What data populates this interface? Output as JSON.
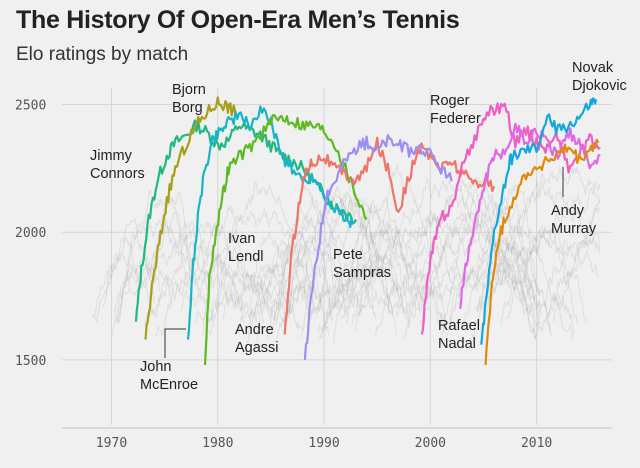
{
  "header": {
    "title": "The History Of Open-Era Men’s Tennis",
    "subtitle": "Elo ratings by match"
  },
  "chart_data": {
    "type": "line",
    "title": "The History Of Open-Era Men’s Tennis",
    "subtitle": "Elo ratings by match",
    "xlabel": "",
    "ylabel": "",
    "xlim": [
      1966,
      2017
    ],
    "ylim": [
      1300,
      2600
    ],
    "x_ticks": [
      1970,
      1980,
      1990,
      2000,
      2010
    ],
    "y_ticks": [
      1500,
      2000,
      2500
    ],
    "x_tick_labels": [
      "1970",
      "1980",
      "1990",
      "2000",
      "2010"
    ],
    "y_tick_labels": [
      "1500",
      "2000",
      "2500"
    ],
    "grid": true,
    "background_players": "many other players shown as faint gray lines between about 1500 and 2300",
    "series": [
      {
        "name": "Jimmy Connors",
        "color": "#1fb982",
        "points": [
          [
            1972.3,
            1650
          ],
          [
            1972.8,
            1850
          ],
          [
            1973.5,
            2050
          ],
          [
            1974.3,
            2200
          ],
          [
            1975.2,
            2300
          ],
          [
            1976,
            2350
          ],
          [
            1977,
            2380
          ],
          [
            1978,
            2420
          ],
          [
            1979,
            2390
          ],
          [
            1980,
            2340
          ],
          [
            1981,
            2360
          ],
          [
            1982,
            2420
          ],
          [
            1983,
            2400
          ],
          [
            1984,
            2380
          ],
          [
            1985,
            2340
          ],
          [
            1986,
            2300
          ],
          [
            1987,
            2280
          ],
          [
            1988,
            2250
          ],
          [
            1989,
            2200
          ],
          [
            1990,
            2150
          ],
          [
            1991,
            2100
          ],
          [
            1992,
            2080
          ],
          [
            1993,
            2050
          ]
        ]
      },
      {
        "name": "Bjorn Borg",
        "color": "#a7a017",
        "points": [
          [
            1973.2,
            1580
          ],
          [
            1973.8,
            1780
          ],
          [
            1974.5,
            1960
          ],
          [
            1975.2,
            2120
          ],
          [
            1976,
            2250
          ],
          [
            1977,
            2340
          ],
          [
            1978,
            2420
          ],
          [
            1979,
            2470
          ],
          [
            1980,
            2510
          ],
          [
            1980.6,
            2500
          ],
          [
            1981.3,
            2480
          ],
          [
            1981.9,
            2460
          ]
        ]
      },
      {
        "name": "John McEnroe",
        "color": "#17b5c7",
        "points": [
          [
            1977.2,
            1580
          ],
          [
            1977.7,
            1880
          ],
          [
            1978.2,
            2080
          ],
          [
            1978.8,
            2250
          ],
          [
            1979.5,
            2360
          ],
          [
            1980.2,
            2400
          ],
          [
            1981,
            2440
          ],
          [
            1982,
            2450
          ],
          [
            1983,
            2420
          ],
          [
            1984,
            2470
          ],
          [
            1985,
            2440
          ],
          [
            1986,
            2300
          ],
          [
            1987,
            2250
          ],
          [
            1988,
            2200
          ],
          [
            1989,
            2220
          ],
          [
            1990,
            2150
          ],
          [
            1991,
            2100
          ],
          [
            1992,
            2050
          ],
          [
            1992.7,
            2030
          ]
        ]
      },
      {
        "name": "Ivan Lendl",
        "color": "#5dba22",
        "points": [
          [
            1978.8,
            1480
          ],
          [
            1979.2,
            1820
          ],
          [
            1979.8,
            2000
          ],
          [
            1980.5,
            2150
          ],
          [
            1981,
            2250
          ],
          [
            1982,
            2300
          ],
          [
            1983,
            2330
          ],
          [
            1984,
            2380
          ],
          [
            1985,
            2430
          ],
          [
            1986,
            2450
          ],
          [
            1987,
            2440
          ],
          [
            1988,
            2420
          ],
          [
            1989,
            2420
          ],
          [
            1990,
            2400
          ],
          [
            1991,
            2350
          ],
          [
            1992,
            2250
          ],
          [
            1993,
            2150
          ],
          [
            1994,
            2050
          ]
        ]
      },
      {
        "name": "Andre Agassi",
        "color": "#f07568",
        "points": [
          [
            1986.3,
            1600
          ],
          [
            1986.9,
            1900
          ],
          [
            1987.6,
            2100
          ],
          [
            1988.3,
            2250
          ],
          [
            1989,
            2280
          ],
          [
            1990,
            2300
          ],
          [
            1991,
            2250
          ],
          [
            1992,
            2230
          ],
          [
            1993,
            2200
          ],
          [
            1994,
            2250
          ],
          [
            1995,
            2350
          ],
          [
            1996,
            2250
          ],
          [
            1997,
            2080
          ],
          [
            1998,
            2220
          ],
          [
            1999,
            2330
          ],
          [
            2000,
            2300
          ],
          [
            2001,
            2250
          ],
          [
            2002,
            2280
          ],
          [
            2003,
            2230
          ],
          [
            2004,
            2200
          ],
          [
            2005,
            2200
          ],
          [
            2006,
            2180
          ]
        ]
      },
      {
        "name": "Pete Sampras",
        "color": "#9d8ef2",
        "points": [
          [
            1988.2,
            1500
          ],
          [
            1988.8,
            1750
          ],
          [
            1989.5,
            1950
          ],
          [
            1990.2,
            2150
          ],
          [
            1991,
            2200
          ],
          [
            1992,
            2280
          ],
          [
            1993,
            2330
          ],
          [
            1994,
            2350
          ],
          [
            1995,
            2320
          ],
          [
            1996,
            2360
          ],
          [
            1997,
            2340
          ],
          [
            1998,
            2320
          ],
          [
            1999,
            2330
          ],
          [
            2000,
            2300
          ],
          [
            2001,
            2250
          ],
          [
            2002,
            2200
          ]
        ]
      },
      {
        "name": "Roger Federer",
        "color": "#f05ec3",
        "points": [
          [
            1999.2,
            1600
          ],
          [
            1999.7,
            1800
          ],
          [
            2000.3,
            1950
          ],
          [
            2001,
            2050
          ],
          [
            2002,
            2100
          ],
          [
            2003,
            2250
          ],
          [
            2004,
            2350
          ],
          [
            2005,
            2450
          ],
          [
            2006,
            2480
          ],
          [
            2007,
            2500
          ],
          [
            2008,
            2350
          ],
          [
            2009,
            2400
          ],
          [
            2010,
            2350
          ],
          [
            2011,
            2330
          ],
          [
            2012,
            2380
          ],
          [
            2013,
            2250
          ],
          [
            2014,
            2300
          ],
          [
            2015,
            2360
          ],
          [
            2016,
            2330
          ]
        ]
      },
      {
        "name": "Rafael Nadal",
        "color": "#e068e8",
        "points": [
          [
            2002.8,
            1700
          ],
          [
            2003.3,
            1870
          ],
          [
            2004,
            2000
          ],
          [
            2004.8,
            2150
          ],
          [
            2005.5,
            2250
          ],
          [
            2006,
            2300
          ],
          [
            2007,
            2320
          ],
          [
            2008,
            2410
          ],
          [
            2009,
            2360
          ],
          [
            2010,
            2400
          ],
          [
            2011,
            2350
          ],
          [
            2012,
            2300
          ],
          [
            2013,
            2390
          ],
          [
            2014,
            2360
          ],
          [
            2015,
            2270
          ],
          [
            2016,
            2300
          ]
        ]
      },
      {
        "name": "Novak Djokovic",
        "color": "#13a7de",
        "points": [
          [
            2004.8,
            1560
          ],
          [
            2005.3,
            1750
          ],
          [
            2006,
            2000
          ],
          [
            2006.8,
            2150
          ],
          [
            2007.5,
            2280
          ],
          [
            2008,
            2300
          ],
          [
            2009,
            2320
          ],
          [
            2010,
            2330
          ],
          [
            2011,
            2450
          ],
          [
            2012,
            2400
          ],
          [
            2013,
            2420
          ],
          [
            2014,
            2450
          ],
          [
            2015,
            2500
          ],
          [
            2015.6,
            2520
          ]
        ]
      },
      {
        "name": "Andy Murray",
        "color": "#de8a0d",
        "points": [
          [
            2005.2,
            1480
          ],
          [
            2005.7,
            1750
          ],
          [
            2006.3,
            1950
          ],
          [
            2007,
            2050
          ],
          [
            2008,
            2150
          ],
          [
            2009,
            2230
          ],
          [
            2010,
            2250
          ],
          [
            2011,
            2280
          ],
          [
            2012,
            2300
          ],
          [
            2013,
            2330
          ],
          [
            2014,
            2280
          ],
          [
            2015,
            2320
          ],
          [
            2015.8,
            2350
          ]
        ]
      }
    ],
    "annotations": [
      {
        "player": "Jimmy Connors",
        "lines": [
          "Jimmy",
          "Connors"
        ]
      },
      {
        "player": "Bjorn Borg",
        "lines": [
          "Bjorn",
          "Borg"
        ]
      },
      {
        "player": "John McEnroe",
        "lines": [
          "John",
          "McEnroe"
        ]
      },
      {
        "player": "Ivan Lendl",
        "lines": [
          "Ivan",
          "Lendl"
        ]
      },
      {
        "player": "Andre Agassi",
        "lines": [
          "Andre",
          "Agassi"
        ]
      },
      {
        "player": "Pete Sampras",
        "lines": [
          "Pete",
          "Sampras"
        ]
      },
      {
        "player": "Roger Federer",
        "lines": [
          "Roger",
          "Federer"
        ]
      },
      {
        "player": "Rafael Nadal",
        "lines": [
          "Rafael",
          "Nadal"
        ]
      },
      {
        "player": "Novak Djokovic",
        "lines": [
          "Novak",
          "Djokovic"
        ]
      },
      {
        "player": "Andy Murray",
        "lines": [
          "Andy",
          "Murray"
        ]
      }
    ]
  }
}
